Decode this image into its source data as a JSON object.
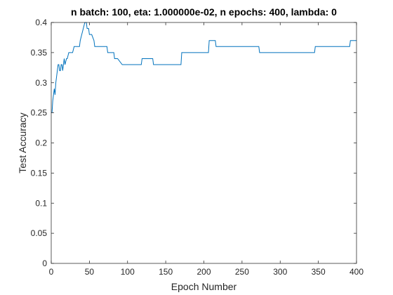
{
  "chart_data": {
    "type": "line",
    "title": "n batch: 100, eta: 1.000000e-02, n epochs: 400, lambda: 0",
    "xlabel": "Epoch Number",
    "ylabel": "Test Accuracy",
    "xlim": [
      0,
      400
    ],
    "ylim": [
      0,
      0.4
    ],
    "xticks": [
      0,
      50,
      100,
      150,
      200,
      250,
      300,
      350,
      400
    ],
    "yticks": [
      0,
      0.05,
      0.1,
      0.15,
      0.2,
      0.25,
      0.3,
      0.35,
      0.4
    ],
    "xtick_labels": [
      "0",
      "50",
      "100",
      "150",
      "200",
      "250",
      "300",
      "350",
      "400"
    ],
    "ytick_labels": [
      "0",
      "0.05",
      "0.1",
      "0.15",
      "0.2",
      "0.25",
      "0.3",
      "0.35",
      "0.4"
    ],
    "grid": false,
    "box": true,
    "series": [
      {
        "color": "#0072BD",
        "x": [
          1,
          2,
          3,
          4,
          5,
          6,
          7,
          8,
          9,
          10,
          11,
          12,
          13,
          14,
          15,
          16,
          17,
          18,
          20,
          21,
          23,
          24,
          26,
          28,
          30,
          31,
          37,
          38,
          40,
          42,
          44,
          46,
          47,
          49,
          50,
          52,
          53,
          56,
          57,
          73,
          74,
          82,
          83,
          86,
          87,
          93,
          94,
          118,
          119,
          133,
          134,
          170,
          171,
          206,
          207,
          215,
          216,
          272,
          273,
          345,
          346,
          391,
          392,
          400
        ],
        "y": [
          0.25,
          0.27,
          0.28,
          0.29,
          0.28,
          0.3,
          0.31,
          0.32,
          0.33,
          0.33,
          0.32,
          0.32,
          0.33,
          0.33,
          0.32,
          0.33,
          0.34,
          0.33,
          0.34,
          0.34,
          0.35,
          0.35,
          0.35,
          0.35,
          0.36,
          0.36,
          0.36,
          0.37,
          0.38,
          0.39,
          0.4,
          0.4,
          0.39,
          0.39,
          0.38,
          0.38,
          0.38,
          0.37,
          0.36,
          0.36,
          0.35,
          0.35,
          0.34,
          0.34,
          0.34,
          0.33,
          0.33,
          0.33,
          0.34,
          0.34,
          0.33,
          0.33,
          0.35,
          0.35,
          0.37,
          0.37,
          0.36,
          0.36,
          0.35,
          0.35,
          0.36,
          0.36,
          0.37,
          0.37
        ]
      }
    ]
  }
}
